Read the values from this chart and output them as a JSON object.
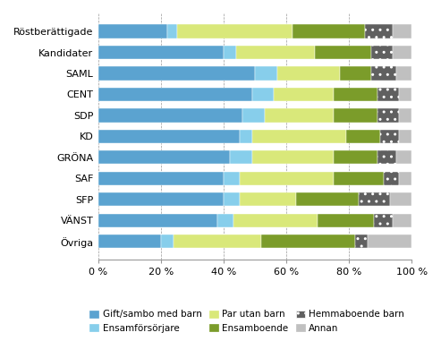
{
  "categories": [
    "Röstberättigade",
    "Kandidater",
    "SAML",
    "CENT",
    "SDP",
    "KD",
    "GRÖNA",
    "SAF",
    "SFP",
    "VÄNST",
    "Övriga"
  ],
  "series": {
    "Gift/sambo med barn": [
      22,
      40,
      50,
      49,
      46,
      45,
      42,
      40,
      40,
      38,
      20
    ],
    "Ensamförsörjare": [
      3,
      4,
      7,
      7,
      7,
      4,
      7,
      5,
      5,
      5,
      4
    ],
    "Par utan barn": [
      37,
      25,
      20,
      19,
      22,
      30,
      26,
      30,
      18,
      27,
      28
    ],
    "Ensamboende": [
      23,
      18,
      10,
      14,
      14,
      11,
      14,
      16,
      20,
      18,
      30
    ],
    "Hemmaboende barn": [
      9,
      7,
      8,
      7,
      7,
      6,
      6,
      5,
      10,
      6,
      4
    ],
    "Annan": [
      6,
      6,
      5,
      4,
      4,
      4,
      5,
      4,
      7,
      6,
      14
    ]
  },
  "colors": {
    "Gift/sambo med barn": "#5BA3D0",
    "Ensamförsörjare": "#87CEEB",
    "Par utan barn": "#D9E87A",
    "Ensamboende": "#7B9C2A",
    "Hemmaboende barn": "#606060",
    "Annan": "#C0C0C0"
  },
  "hatch": {
    "Gift/sambo med barn": null,
    "Ensamförsörjare": null,
    "Par utan barn": null,
    "Ensamboende": null,
    "Hemmaboende barn": "..",
    "Annan": null
  },
  "xlim": [
    0,
    100
  ],
  "xticks": [
    0,
    20,
    40,
    60,
    80,
    100
  ],
  "xticklabels": [
    "0 %",
    "20 %",
    "40 %",
    "60 %",
    "80 %",
    "100 %"
  ],
  "legend_labels": [
    "Gift/sambo med barn",
    "Ensamförsörjare",
    "Par utan barn",
    "Ensamboende",
    "Hemmaboende barn",
    "Annan"
  ],
  "legend_ncol": 3,
  "figsize": [
    4.93,
    3.81
  ],
  "dpi": 100
}
